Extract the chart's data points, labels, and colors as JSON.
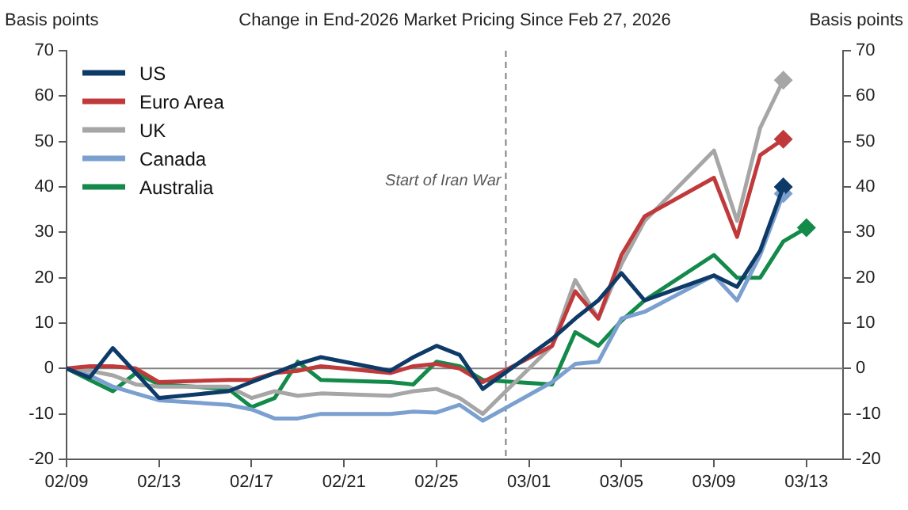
{
  "chart_data": {
    "type": "line",
    "title": "Change in End-2026 Market Pricing Since Feb 27, 2026",
    "ylabel": "Basis points",
    "y2label": "Basis points",
    "x": [
      "2026-02-09",
      "2026-02-10",
      "2026-02-11",
      "2026-02-12",
      "2026-02-13",
      "2026-02-16",
      "2026-02-17",
      "2026-02-18",
      "2026-02-19",
      "2026-02-20",
      "2026-02-23",
      "2026-02-24",
      "2026-02-25",
      "2026-02-26",
      "2026-02-27",
      "2026-03-02",
      "2026-03-03",
      "2026-03-04",
      "2026-03-05",
      "2026-03-06",
      "2026-03-09",
      "2026-03-10",
      "2026-03-11",
      "2026-03-12"
    ],
    "series": [
      {
        "name": "US",
        "color": "#0d3a66",
        "values": [
          0,
          -2,
          4.5,
          -1,
          -6.5,
          -5,
          -3,
          -1,
          1,
          2.5,
          -0.5,
          2.5,
          5,
          3,
          -4.5,
          6.5,
          11,
          15,
          21,
          15,
          20.5,
          18,
          26,
          40
        ]
      },
      {
        "name": "Euro Area",
        "color": "#c0393b",
        "values": [
          0,
          0.5,
          0.5,
          0,
          -3,
          -2.5,
          -2.5,
          -1,
          -0.5,
          0.5,
          -1,
          0.5,
          1,
          0,
          -3,
          5,
          17,
          11,
          25,
          33.5,
          42,
          29,
          47,
          50.5
        ]
      },
      {
        "name": "UK",
        "color": "#a6a6a6",
        "values": [
          0,
          -0.5,
          -1.5,
          -3.5,
          -4,
          -4,
          -6.5,
          -5,
          -6,
          -5.5,
          -6,
          -5,
          -4.5,
          -6.5,
          -10,
          5,
          19.5,
          11,
          23,
          32.5,
          48,
          32.5,
          53,
          63.5
        ]
      },
      {
        "name": "Canada",
        "color": "#7ba0d0",
        "values": [
          0,
          -1.5,
          -4,
          -5.5,
          -7,
          -8,
          -9,
          -11,
          -11,
          -10,
          -10,
          -9.5,
          -9.7,
          -8,
          -11.5,
          -3,
          1,
          1.5,
          11,
          12.5,
          20.5,
          15,
          25,
          38.5
        ]
      },
      {
        "name": "Australia",
        "color": "#138a4a",
        "x": [
          "2026-02-09",
          "2026-02-10",
          "2026-02-11",
          "2026-02-12",
          "2026-02-13",
          "2026-02-16",
          "2026-02-17",
          "2026-02-18",
          "2026-02-19",
          "2026-02-20",
          "2026-02-23",
          "2026-02-24",
          "2026-02-25",
          "2026-02-26",
          "2026-02-27",
          "2026-03-02",
          "2026-03-03",
          "2026-03-04",
          "2026-03-05",
          "2026-03-06",
          "2026-03-09",
          "2026-03-10",
          "2026-03-11",
          "2026-03-12",
          "2026-03-13"
        ],
        "values": [
          0,
          -2.5,
          -5,
          -1,
          -3.5,
          -4.5,
          -8.5,
          -6.5,
          1.5,
          -2.5,
          -3,
          -3.5,
          1.5,
          0.5,
          -2.5,
          -3.5,
          8,
          5,
          10.5,
          15,
          25,
          20,
          20,
          28,
          31
        ]
      },
      {
        "type": "scatter",
        "marker": "diamond",
        "color": "#0d3a66",
        "x": [
          "2026-03-12"
        ],
        "values": [
          40
        ]
      },
      {
        "type": "scatter",
        "marker": "diamond",
        "color": "#c0393b",
        "x": [
          "2026-03-12"
        ],
        "values": [
          50.5
        ]
      },
      {
        "type": "scatter",
        "marker": "diamond",
        "color": "#a6a6a6",
        "x": [
          "2026-03-12"
        ],
        "values": [
          63.5
        ]
      },
      {
        "type": "scatter",
        "marker": "diamond",
        "color": "#7ba0d0",
        "x": [
          "2026-03-12"
        ],
        "values": [
          38.5
        ]
      },
      {
        "type": "scatter",
        "marker": "diamond",
        "color": "#138a4a",
        "x": [
          "2026-03-13"
        ],
        "values": [
          31
        ]
      }
    ],
    "marker": "none",
    "xlim": [
      "2026-02-09",
      "2026-03-14T14:00"
    ],
    "xticks": [
      {
        "value": "2026-02-09",
        "label": "02/09"
      },
      {
        "value": "2026-02-13",
        "label": "02/13"
      },
      {
        "value": "2026-02-17",
        "label": "02/17"
      },
      {
        "value": "2026-02-21",
        "label": "02/21"
      },
      {
        "value": "2026-02-25",
        "label": "02/25"
      },
      {
        "value": "2026-03-01",
        "label": "03/01"
      },
      {
        "value": "2026-03-05",
        "label": "03/05"
      },
      {
        "value": "2026-03-09",
        "label": "03/09"
      },
      {
        "value": "2026-03-13",
        "label": "03/13"
      }
    ],
    "ylim": [
      -20,
      70
    ],
    "yticks": [
      -20,
      -10,
      0,
      10,
      20,
      30,
      40,
      50,
      60,
      70
    ],
    "y2lim": [
      -20,
      70
    ],
    "y2ticks": [
      -20,
      -10,
      0,
      10,
      20,
      30,
      40,
      50,
      60,
      70
    ],
    "ref_lines": [
      {
        "axis": "x",
        "value": "2026-02-28",
        "label": "Start of Iran War",
        "color": "#808080",
        "line_style": "dashed"
      },
      {
        "axis": "y",
        "value": 0,
        "color": "#808080",
        "line_style": "solid"
      }
    ],
    "grid": false,
    "legend": "top left"
  }
}
